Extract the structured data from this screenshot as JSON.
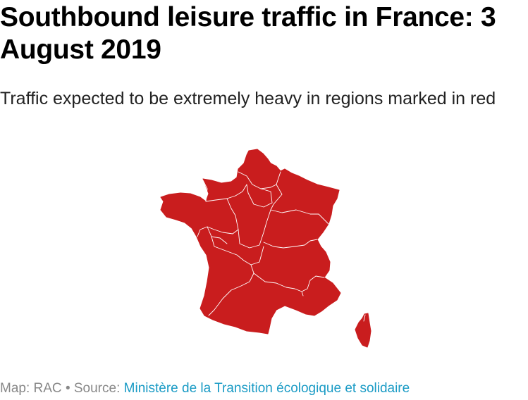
{
  "header": {
    "title": "Southbound leisure traffic in France: 3 August 2019",
    "subtitle": "Traffic expected to be extremely heavy in regions marked in red"
  },
  "map": {
    "fill_color": "#c91d1e",
    "border_color": "#ffffff"
  },
  "footer": {
    "credit_label": "Map:",
    "credit_value": "RAC",
    "separator": "•",
    "source_label": "Source:",
    "source_link_text": "Ministère de la Transition écologique et solidaire",
    "link_color": "#1a9bc5"
  }
}
